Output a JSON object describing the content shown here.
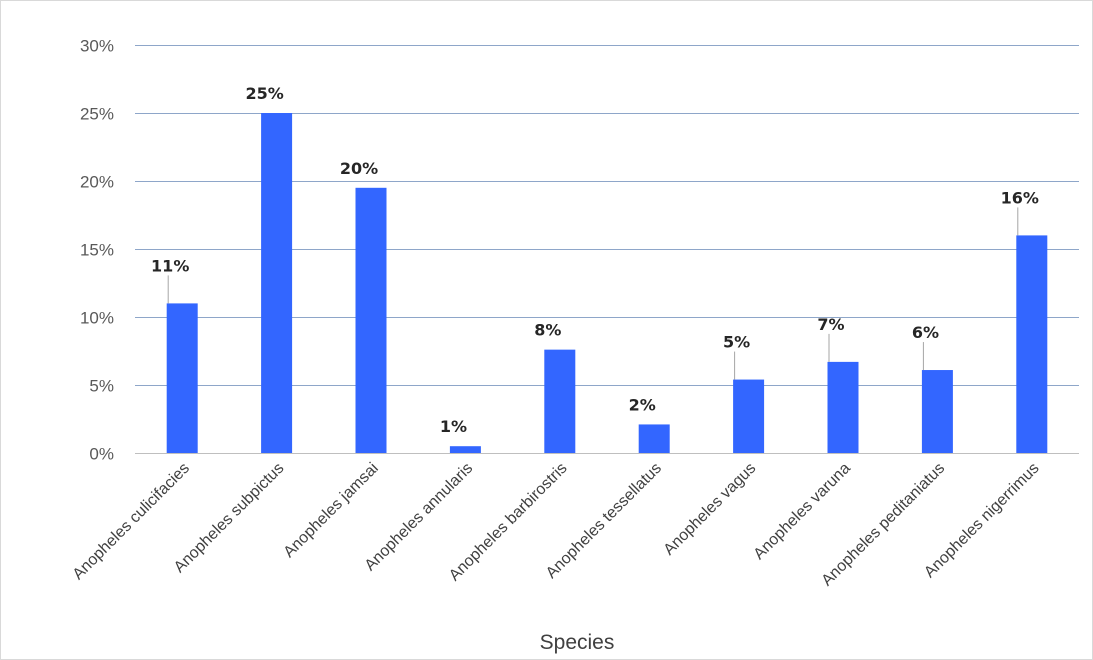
{
  "chart_data": {
    "type": "bar",
    "title": "",
    "xlabel": "Species",
    "ylabel": "",
    "ylim": [
      0,
      0.3
    ],
    "y_ticks": [
      0,
      0.05,
      0.1,
      0.15,
      0.2,
      0.25,
      0.3
    ],
    "y_tick_labels": [
      "0%",
      "5%",
      "10%",
      "15%",
      "20%",
      "25%",
      "30%"
    ],
    "grid": true,
    "legend": "none",
    "bar_color": "#3366ff",
    "categories": [
      "Anopheles culicifacies",
      "Anopheles subpictus",
      "Anopheles jamsai",
      "Anopheles annularis",
      "Anopheles barbirostris",
      "Anopheles tessellatus",
      "Anopheles vagus",
      "Anopheles varuna",
      "Anopheles peditaniatus",
      "Anopheles nigerrimus"
    ],
    "values": [
      0.11,
      0.25,
      0.195,
      0.005,
      0.076,
      0.021,
      0.054,
      0.067,
      0.061,
      0.16
    ],
    "data_labels": [
      "11%",
      "25%",
      "20%",
      "1%",
      "8%",
      "2%",
      "5%",
      "7%",
      "6%",
      "16%"
    ]
  }
}
